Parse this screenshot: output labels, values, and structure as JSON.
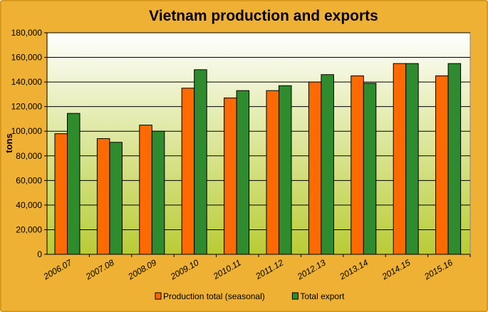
{
  "chart_data": {
    "type": "bar",
    "title": "Vietnam production and exports",
    "xlabel": "",
    "ylabel": "tons",
    "categories": [
      "2006.07",
      "2007.08",
      "2008.09",
      "2009.10",
      "2010.11",
      "2011.12",
      "2012.13",
      "2013.14",
      "2014.15",
      "2015.16"
    ],
    "series": [
      {
        "name": "Production total (seasonal)",
        "color": "#ff6a00",
        "values": [
          98000,
          94000,
          105000,
          135000,
          127000,
          133000,
          140000,
          145000,
          155000,
          145000
        ]
      },
      {
        "name": "Total export",
        "color": "#2e8b2e",
        "values": [
          114500,
          91000,
          100000,
          150000,
          133000,
          137000,
          146000,
          139000,
          155000,
          155000
        ]
      }
    ],
    "ylim": [
      0,
      180000
    ],
    "yticks": [
      0,
      20000,
      40000,
      60000,
      80000,
      100000,
      120000,
      140000,
      160000,
      180000
    ],
    "ytick_labels": [
      "0",
      "20,000",
      "40,000",
      "60,000",
      "80,000",
      "100,000",
      "120,000",
      "140,000",
      "160,000",
      "180,000"
    ],
    "grid": true,
    "legend_position": "bottom"
  }
}
